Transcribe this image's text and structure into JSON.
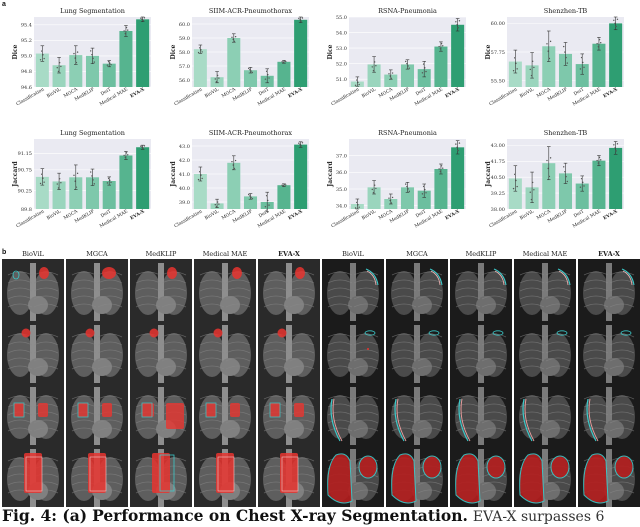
{
  "panel_a_label": "a",
  "panel_b_label": "b",
  "chart_data": [
    {
      "type": "bar",
      "title": "Lung Segmentation",
      "ylabel": "Dice",
      "categories": [
        "Classification",
        "BioViL",
        "MGCA",
        "MedKLIP",
        "DeiT",
        "Medical MAE",
        "EVA-X"
      ],
      "values": [
        95.03,
        94.88,
        95.01,
        95.0,
        94.9,
        95.32,
        95.47
      ],
      "ylim": [
        94.6,
        95.5
      ],
      "yticks": [
        "94.6",
        "94.8",
        "95.0",
        "95.2",
        "95.4"
      ],
      "errors": [
        0.1,
        0.1,
        0.12,
        0.1,
        0.04,
        0.07,
        0.03
      ]
    },
    {
      "type": "bar",
      "title": "SIIM-ACR-Pneumothorax",
      "ylabel": "Dice",
      "categories": [
        "Classification",
        "BioViL",
        "MGCA",
        "MedKLIP",
        "DeiT",
        "Medical MAE",
        "EVA-X"
      ],
      "values": [
        58.2,
        56.2,
        59.0,
        56.7,
        56.3,
        57.3,
        60.3
      ],
      "ylim": [
        55.5,
        60.5
      ],
      "yticks": [
        "56.0",
        "57.0",
        "58.0",
        "59.0",
        "60.0"
      ],
      "errors": [
        0.3,
        0.4,
        0.3,
        0.2,
        0.5,
        0.1,
        0.2
      ]
    },
    {
      "type": "bar",
      "title": "RSNA-Pneumonia",
      "ylabel": "Dice",
      "categories": [
        "Classification",
        "BioViL",
        "MGCA",
        "MedKLIP",
        "DeiT",
        "Medical MAE",
        "EVA-X"
      ],
      "values": [
        50.85,
        51.95,
        51.3,
        51.95,
        51.65,
        53.1,
        54.5
      ],
      "ylim": [
        50.5,
        55.0
      ],
      "yticks": [
        "51.0",
        "52.0",
        "53.0",
        "54.0",
        "55.0"
      ],
      "errors": [
        0.3,
        0.5,
        0.3,
        0.3,
        0.5,
        0.3,
        0.4
      ]
    },
    {
      "type": "bar",
      "title": "Shenzhen-TB",
      "ylabel": "Dice",
      "categories": [
        "Classification",
        "BioViL",
        "MGCA",
        "MedKLIP",
        "DeiT",
        "Medical MAE",
        "EVA-X"
      ],
      "values": [
        57.0,
        56.7,
        58.2,
        57.6,
        56.8,
        58.4,
        60.0
      ],
      "ylim": [
        55.0,
        60.5
      ],
      "yticks": [
        "55.50",
        "57.75",
        "60.00"
      ],
      "errors": [
        0.9,
        1.0,
        1.2,
        0.9,
        0.8,
        0.5,
        0.5
      ]
    },
    {
      "type": "bar",
      "title": "Lung Segmentation",
      "ylabel": "Jaccard",
      "categories": [
        "Classification",
        "BioViL",
        "MGCA",
        "MedKLIP",
        "DeiT",
        "Medical MAE",
        "EVA-X"
      ],
      "values": [
        90.58,
        90.47,
        90.57,
        90.57,
        90.48,
        91.1,
        91.3
      ],
      "ylim": [
        89.8,
        91.5
      ],
      "yticks": [
        "89.8",
        "90.25",
        "90.75",
        "91.15"
      ],
      "errors": [
        0.2,
        0.2,
        0.3,
        0.2,
        0.1,
        0.1,
        0.05
      ]
    },
    {
      "type": "bar",
      "title": "SIIM-ACR-Pneumothorax",
      "ylabel": "Jaccard",
      "categories": [
        "Classification",
        "BioViL",
        "MGCA",
        "MedKLIP",
        "DeiT",
        "Medical MAE",
        "EVA-X"
      ],
      "values": [
        41.0,
        38.9,
        41.8,
        39.4,
        39.0,
        40.2,
        43.1
      ],
      "ylim": [
        38.5,
        43.5
      ],
      "yticks": [
        "39.0",
        "40.0",
        "41.0",
        "42.0",
        "43.0"
      ],
      "errors": [
        0.5,
        0.3,
        0.5,
        0.2,
        0.7,
        0.1,
        0.2
      ]
    },
    {
      "type": "bar",
      "title": "RSNA-Pneumonia",
      "ylabel": "Jaccard",
      "categories": [
        "Classification",
        "BioViL",
        "MGCA",
        "MedKLIP",
        "DeiT",
        "Medical MAE",
        "EVA-X"
      ],
      "values": [
        34.1,
        35.1,
        34.4,
        35.1,
        34.9,
        36.2,
        37.5
      ],
      "ylim": [
        33.8,
        38.0
      ],
      "yticks": [
        "34.0",
        "35.0",
        "36.0",
        "37.0"
      ],
      "errors": [
        0.3,
        0.4,
        0.3,
        0.3,
        0.4,
        0.3,
        0.4
      ]
    },
    {
      "type": "bar",
      "title": "Shenzhen-TB",
      "ylabel": "Jaccard",
      "categories": [
        "Classification",
        "BioViL",
        "MGCA",
        "MedKLIP",
        "DeiT",
        "Medical MAE",
        "EVA-X"
      ],
      "values": [
        40.4,
        39.7,
        41.6,
        40.8,
        40.0,
        41.8,
        42.8
      ],
      "ylim": [
        38.0,
        43.5
      ],
      "yticks": [
        "38.00",
        "39.25",
        "40.50",
        "41.75",
        "43.00"
      ],
      "errors": [
        1.0,
        1.2,
        1.3,
        0.8,
        0.6,
        0.4,
        0.5
      ]
    }
  ],
  "grid": {
    "left_labels": [
      "BioViL",
      "MGCA",
      "MedKLIP",
      "Medical MAE",
      "EVA-X"
    ],
    "right_labels": [
      "BioViL",
      "MGCA",
      "MedKLIP",
      "Medical MAE",
      "EVA-X"
    ],
    "bold_label": "EVA-X"
  },
  "colors": {
    "bars": [
      "#a8dbc6",
      "#9ad5bd",
      "#8ccfb4",
      "#7ec8ab",
      "#6cbf9f",
      "#56b48f",
      "#2e9e72"
    ],
    "mask": "#e8342f",
    "outline": "#3cc9c9"
  },
  "caption": {
    "figure": "Fig. 4: (a)",
    "title": "Performance on Chest X-ray Segmentation.",
    "text": "EVA-X surpasses 6"
  }
}
